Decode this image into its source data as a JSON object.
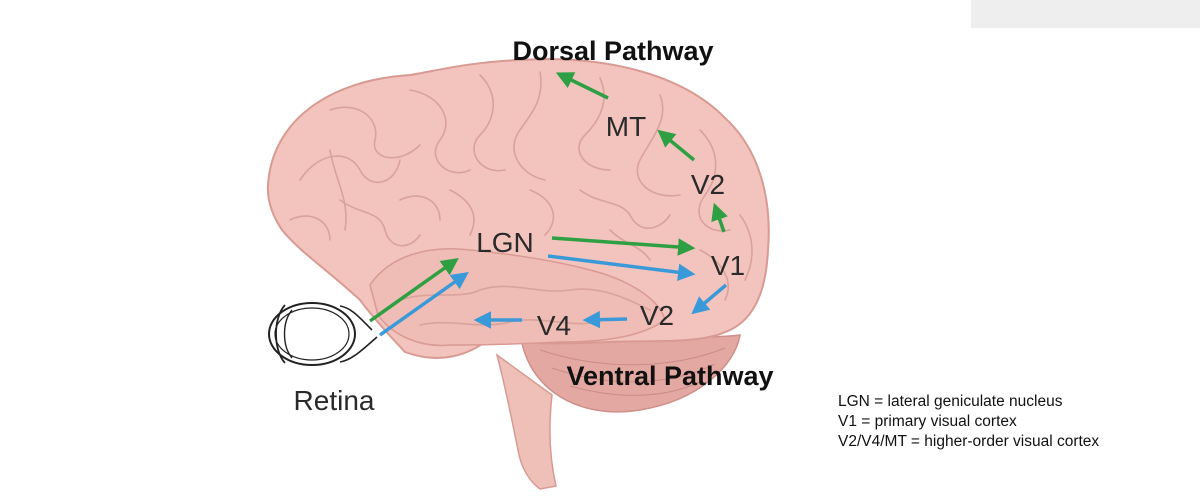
{
  "title": "Dorsal Pathway",
  "subtitle": "Ventral Pathway",
  "nodes": {
    "retina": "Retina",
    "lgn": "LGN",
    "v1": "V1",
    "v2_dorsal": "V2",
    "mt": "MT",
    "v2_ventral": "V2",
    "v4": "V4"
  },
  "legend": [
    "LGN = lateral geniculate nucleus",
    "V1 = primary visual cortex",
    "V2/V4/MT = higher-order visual cortex"
  ],
  "colors": {
    "dorsal_arrow": "#2ea043",
    "ventral_arrow": "#3a9ad9",
    "brain_fill": "#f2c4bd",
    "brain_outline": "#d99a93"
  }
}
